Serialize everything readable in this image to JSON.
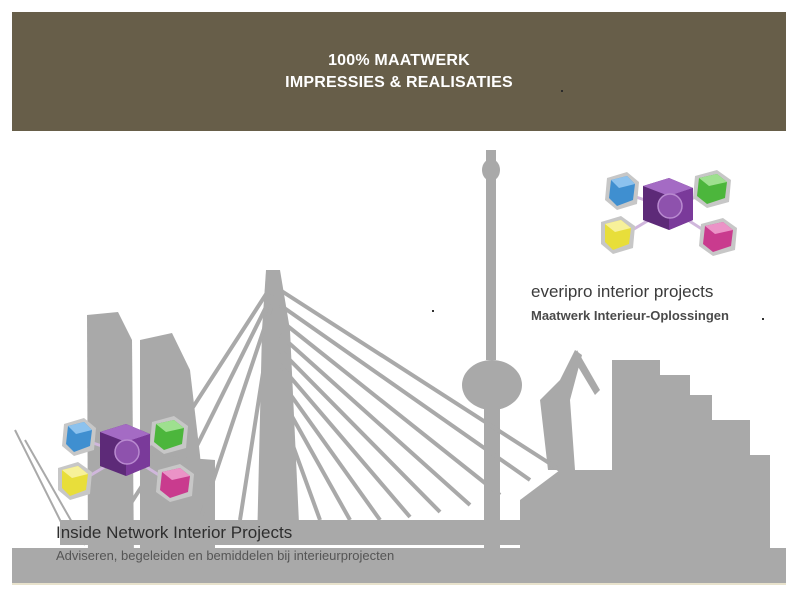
{
  "banner": {
    "line1": "100% MAATWERK",
    "line2": "IMPRESSIES & REALISATIES",
    "background": "#675e49"
  },
  "skyline": {
    "color": "#a6a6a6"
  },
  "companies": [
    {
      "name": "everipro interior projects",
      "tagline": "Maatwerk Interieur-Oplossingen",
      "logo": "cube-network-icon"
    },
    {
      "name": "Inside Network Interior Projects",
      "tagline": "Adviseren, begeleiden en bemiddelen bij interieurprojecten",
      "logo": "cube-network-icon"
    }
  ],
  "logo_colors": {
    "center": "#7a3a9a",
    "blue": "#3f8fd0",
    "green": "#4cb63c",
    "yellow": "#e8de3a",
    "magenta": "#c93b8e"
  }
}
